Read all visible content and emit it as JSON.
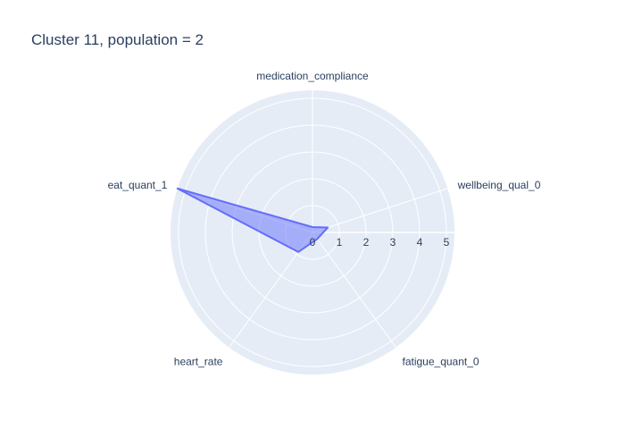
{
  "chart_data": {
    "type": "radar",
    "title": "Cluster 11, population = 2",
    "axes": [
      "medication_compliance",
      "wellbeing_qual_0",
      "fatigue_quant_0",
      "heart_rate",
      "eat_quant_1"
    ],
    "series": [
      {
        "values": [
          0.2,
          0.6,
          0.3,
          0.9,
          5.3
        ],
        "color": "#636efa"
      }
    ],
    "radial_range": [
      0,
      5.3
    ],
    "radial_ticks": [
      "0",
      "1",
      "2",
      "3",
      "4",
      "5"
    ],
    "grid": true,
    "colors": {
      "polar_bg": "#e5ecf6",
      "grid": "#ffffff",
      "text": "#2a3f5f",
      "fill": "rgba(99,110,250,0.5)",
      "line": "#636efa"
    }
  }
}
